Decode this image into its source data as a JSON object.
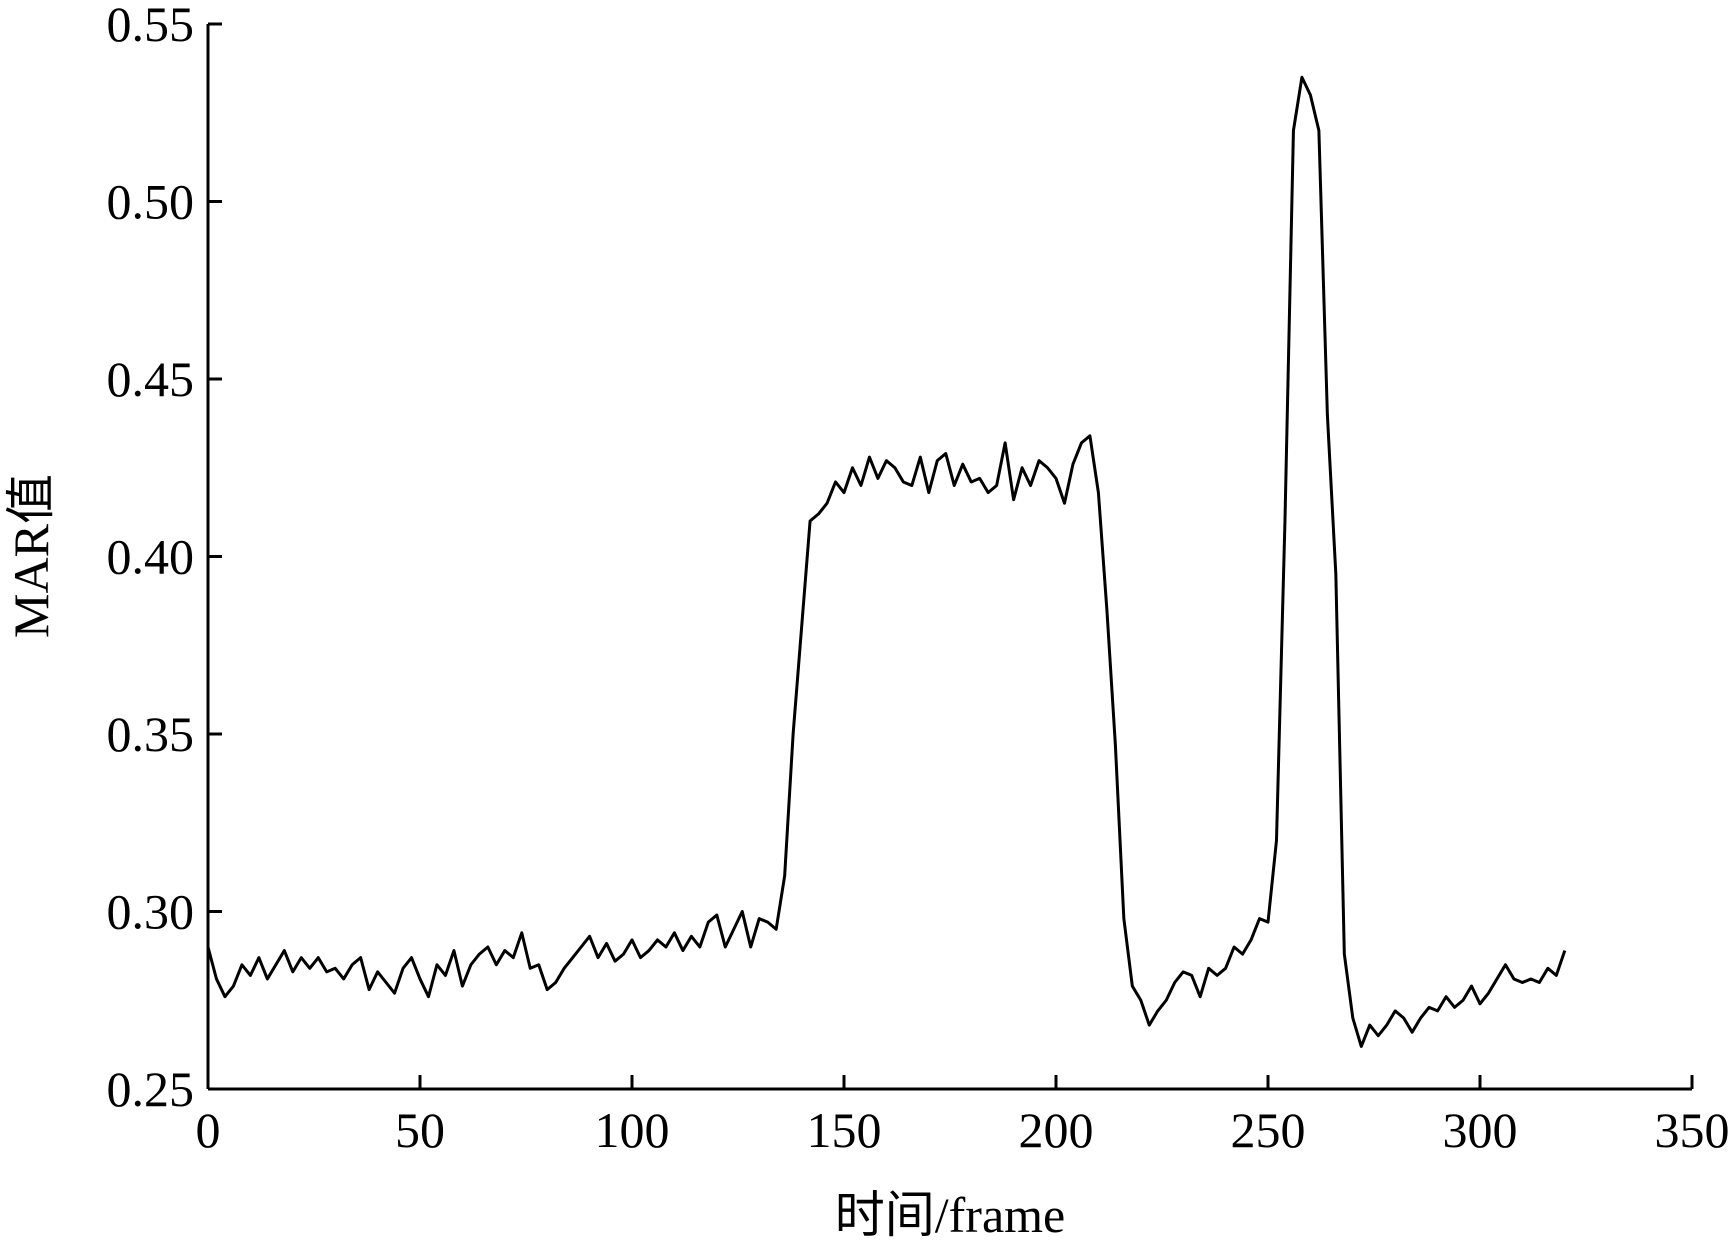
{
  "chart_data": {
    "type": "line",
    "xlabel": "时间/frame",
    "ylabel": "MAR值",
    "x": [
      0,
      2,
      4,
      6,
      8,
      10,
      12,
      14,
      16,
      18,
      20,
      22,
      24,
      26,
      28,
      30,
      32,
      34,
      36,
      38,
      40,
      42,
      44,
      46,
      48,
      50,
      52,
      54,
      56,
      58,
      60,
      62,
      64,
      66,
      68,
      70,
      72,
      74,
      76,
      78,
      80,
      82,
      84,
      86,
      88,
      90,
      92,
      94,
      96,
      98,
      100,
      102,
      104,
      106,
      108,
      110,
      112,
      114,
      116,
      118,
      120,
      122,
      124,
      126,
      128,
      130,
      132,
      134,
      136,
      138,
      140,
      142,
      144,
      146,
      148,
      150,
      152,
      154,
      156,
      158,
      160,
      162,
      164,
      166,
      168,
      170,
      172,
      174,
      176,
      178,
      180,
      182,
      184,
      186,
      188,
      190,
      192,
      194,
      196,
      198,
      200,
      202,
      204,
      206,
      208,
      210,
      212,
      214,
      216,
      218,
      220,
      222,
      224,
      226,
      228,
      230,
      232,
      234,
      236,
      238,
      240,
      242,
      244,
      246,
      248,
      250,
      252,
      254,
      256,
      258,
      260,
      262,
      264,
      266,
      268,
      270,
      272,
      274,
      276,
      278,
      280,
      282,
      284,
      286,
      288,
      290,
      292,
      294,
      296,
      298,
      300,
      302,
      304,
      306,
      308,
      310,
      312,
      314,
      316,
      318,
      320
    ],
    "series": [
      {
        "color": "#000000",
        "values": [
          0.29,
          0.281,
          0.276,
          0.279,
          0.285,
          0.282,
          0.287,
          0.281,
          0.285,
          0.289,
          0.283,
          0.287,
          0.284,
          0.287,
          0.283,
          0.284,
          0.281,
          0.285,
          0.287,
          0.278,
          0.283,
          0.28,
          0.277,
          0.284,
          0.287,
          0.281,
          0.276,
          0.285,
          0.282,
          0.289,
          0.279,
          0.285,
          0.288,
          0.29,
          0.285,
          0.289,
          0.287,
          0.294,
          0.284,
          0.285,
          0.278,
          0.28,
          0.284,
          0.287,
          0.29,
          0.293,
          0.287,
          0.291,
          0.286,
          0.288,
          0.292,
          0.287,
          0.289,
          0.292,
          0.29,
          0.294,
          0.289,
          0.293,
          0.29,
          0.297,
          0.299,
          0.29,
          0.295,
          0.3,
          0.29,
          0.298,
          0.297,
          0.295,
          0.31,
          0.35,
          0.38,
          0.41,
          0.412,
          0.415,
          0.421,
          0.418,
          0.425,
          0.42,
          0.428,
          0.422,
          0.427,
          0.425,
          0.421,
          0.42,
          0.428,
          0.418,
          0.427,
          0.429,
          0.42,
          0.426,
          0.421,
          0.422,
          0.418,
          0.42,
          0.432,
          0.416,
          0.425,
          0.42,
          0.427,
          0.425,
          0.422,
          0.415,
          0.426,
          0.432,
          0.434,
          0.418,
          0.385,
          0.347,
          0.298,
          0.279,
          0.275,
          0.268,
          0.272,
          0.275,
          0.28,
          0.283,
          0.282,
          0.276,
          0.284,
          0.282,
          0.284,
          0.29,
          0.288,
          0.292,
          0.298,
          0.297,
          0.32,
          0.41,
          0.52,
          0.535,
          0.53,
          0.52,
          0.44,
          0.395,
          0.288,
          0.27,
          0.262,
          0.268,
          0.265,
          0.268,
          0.272,
          0.27,
          0.266,
          0.27,
          0.273,
          0.272,
          0.276,
          0.273,
          0.275,
          0.279,
          0.274,
          0.277,
          0.281,
          0.285,
          0.281,
          0.28,
          0.281,
          0.28,
          0.284,
          0.282,
          0.289
        ]
      }
    ],
    "xlim": [
      0,
      350
    ],
    "xticks": [
      0,
      50,
      100,
      150,
      200,
      250,
      300,
      350
    ],
    "ylim": [
      0.25,
      0.55
    ],
    "yticks": [
      {
        "value": 0.25,
        "label": "0.25"
      },
      {
        "value": 0.3,
        "label": "0.30"
      },
      {
        "value": 0.35,
        "label": "0.35"
      },
      {
        "value": 0.4,
        "label": "0.40"
      },
      {
        "value": 0.45,
        "label": "0.45"
      },
      {
        "value": 0.5,
        "label": "0.50"
      },
      {
        "value": 0.55,
        "label": "0.55"
      }
    ],
    "grid": false
  }
}
